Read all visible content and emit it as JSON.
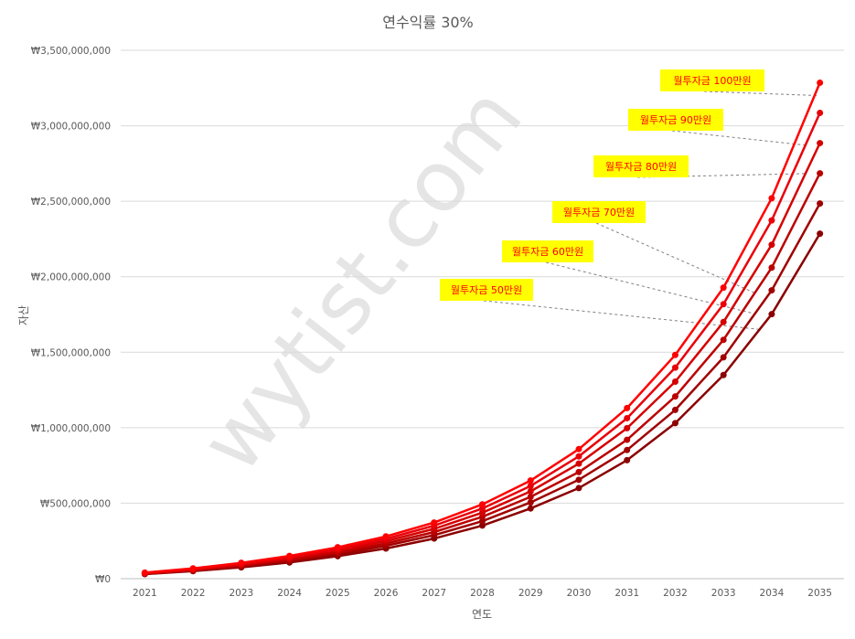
{
  "chart_data": {
    "type": "line",
    "title": "연수익률 30%",
    "xlabel": "연도",
    "ylabel": "자산",
    "categories": [
      "2021",
      "2022",
      "2023",
      "2024",
      "2025",
      "2026",
      "2027",
      "2028",
      "2029",
      "2030",
      "2031",
      "2032",
      "2033",
      "2034",
      "2035"
    ],
    "ylim": [
      0,
      3500000000
    ],
    "yticks": [
      0,
      500000000,
      1000000000,
      1500000000,
      2000000000,
      2500000000,
      3000000000,
      3500000000
    ],
    "ytick_labels": [
      "₩0",
      "₩500,000,000",
      "₩1,000,000,000",
      "₩1,500,000,000",
      "₩2,000,000,000",
      "₩2,500,000,000",
      "₩3,000,000,000",
      "₩3,500,000,000"
    ],
    "grid": true,
    "watermark": "wytist.com",
    "series": [
      {
        "name": "월투자금 100만원",
        "color": "#ff0000",
        "values": [
          40000000,
          68000000,
          105000000,
          151000000,
          208000000,
          280000000,
          372000000,
          492000000,
          650000000,
          858000000,
          1130000000,
          1482000000,
          1928000000,
          2520000000,
          3285000000
        ]
      },
      {
        "name": "월투자금 90만원",
        "color": "#e8000a",
        "values": [
          38000000,
          64000000,
          99000000,
          142000000,
          196000000,
          264000000,
          351000000,
          465000000,
          614000000,
          810000000,
          1063000000,
          1398000000,
          1818000000,
          2373000000,
          3085000000
        ]
      },
      {
        "name": "월투자금 80만원",
        "color": "#d40000",
        "values": [
          36000000,
          60000000,
          93000000,
          134000000,
          185000000,
          249000000,
          330000000,
          437000000,
          578000000,
          762000000,
          997000000,
          1305000000,
          1700000000,
          2212000000,
          2885000000
        ]
      },
      {
        "name": "월투자금 70만원",
        "color": "#bb0000",
        "values": [
          34000000,
          57000000,
          87000000,
          125000000,
          173000000,
          233000000,
          309000000,
          410000000,
          542000000,
          706000000,
          920000000,
          1207000000,
          1582000000,
          2060000000,
          2685000000
        ]
      },
      {
        "name": "월투자금 60만원",
        "color": "#a00000",
        "values": [
          32000000,
          53000000,
          81000000,
          116000000,
          161000000,
          218000000,
          288000000,
          381000000,
          505000000,
          655000000,
          852000000,
          1118000000,
          1466000000,
          1910000000,
          2485000000
        ]
      },
      {
        "name": "월투자금 50만원",
        "color": "#8b0000",
        "values": [
          30000000,
          50000000,
          75000000,
          107000000,
          149000000,
          200000000,
          266000000,
          352000000,
          465000000,
          600000000,
          785000000,
          1030000000,
          1349000000,
          1752000000,
          2285000000
        ]
      }
    ],
    "annotations": [
      {
        "text": "월투자금 100만원",
        "series": 0
      },
      {
        "text": "월투자금 90만원",
        "series": 1
      },
      {
        "text": "월투자금 80만원",
        "series": 2
      },
      {
        "text": "월투자금 70만원",
        "series": 3
      },
      {
        "text": "월투자금 60만원",
        "series": 4
      },
      {
        "text": "월투자금 50만원",
        "series": 5
      }
    ],
    "annotation_style": {
      "background": "#ffff00",
      "text_color": "#ff0000"
    }
  }
}
